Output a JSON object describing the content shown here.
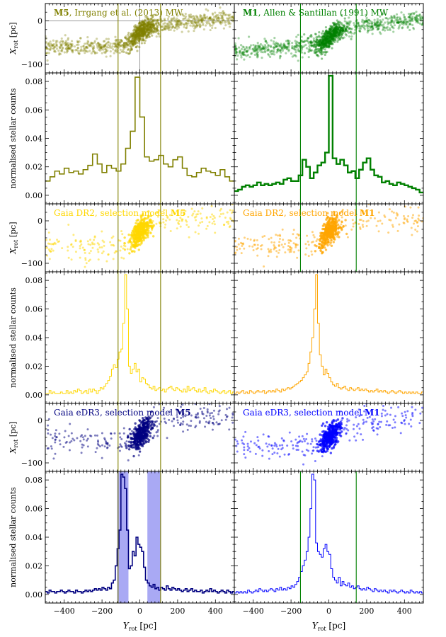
{
  "figure": {
    "xlabel": "Y_rot [pc]",
    "xlabel_main": "Y",
    "xlabel_sub": "rot",
    "xlabel_unit": "[pc]",
    "ylabel_scatter_main": "X",
    "ylabel_scatter_sub": "rot",
    "ylabel_scatter_unit": "[pc]",
    "ylabel_hist": "normalised stellar counts",
    "colors": {
      "olive": "#808000",
      "green": "#008000",
      "gold": "#ffd700",
      "orange": "#ffa500",
      "navy": "#000080",
      "blue": "#0000ff",
      "band": "#8c8cf0"
    }
  },
  "chart_data": [
    {
      "type": "scatter",
      "panel": "row1-left",
      "title_bold": "M5",
      "title_rest": ", Irrgang et al. (2013) MW",
      "color": "#808000",
      "xlim": [
        -500,
        500
      ],
      "ylim": [
        -120,
        40
      ],
      "yticks": [
        0,
        -100
      ],
      "xticks": [
        -400,
        -200,
        0,
        200,
        400
      ],
      "vlines": [
        -115,
        110
      ],
      "hline": 0,
      "vline_zero": 0,
      "trend": {
        "x": [
          -500,
          -200,
          -60,
          0,
          60,
          200,
          500
        ],
        "y": [
          -60,
          -62,
          -55,
          -25,
          -12,
          -5,
          8
        ]
      },
      "density": "dense"
    },
    {
      "type": "scatter",
      "panel": "row1-right",
      "title_bold": "M1",
      "title_rest": ", Allen & Santillan (1991) MW",
      "color": "#008000",
      "xlim": [
        -500,
        500
      ],
      "ylim": [
        -120,
        40
      ],
      "yticks": [
        0,
        -100
      ],
      "xticks": [
        -400,
        -200,
        0,
        200,
        400
      ],
      "vlines": [
        -150,
        145
      ],
      "trend": {
        "x": [
          -500,
          -200,
          -40,
          0,
          40,
          200,
          500
        ],
        "y": [
          -70,
          -60,
          -52,
          -40,
          -22,
          -10,
          5
        ]
      },
      "density": "dense"
    },
    {
      "type": "histogram",
      "panel": "row2-left",
      "color": "#808000",
      "linewidth": 1.6,
      "xlim": [
        -500,
        500
      ],
      "ylim": [
        -0.006,
        0.086
      ],
      "yticks": [
        0.0,
        0.02,
        0.04,
        0.06,
        0.08
      ],
      "xticks": [
        -400,
        -200,
        0,
        200,
        400
      ],
      "vlines": [
        -115,
        110
      ],
      "bin_edges": [
        -500,
        -475,
        -450,
        -425,
        -400,
        -375,
        -350,
        -325,
        -300,
        -275,
        -250,
        -225,
        -200,
        -175,
        -150,
        -125,
        -100,
        -75,
        -50,
        -25,
        0,
        25,
        50,
        75,
        100,
        125,
        150,
        175,
        200,
        225,
        250,
        275,
        300,
        325,
        350,
        375,
        400,
        425,
        450,
        475,
        500
      ],
      "values": [
        0.01,
        0.013,
        0.017,
        0.015,
        0.019,
        0.016,
        0.017,
        0.015,
        0.018,
        0.021,
        0.029,
        0.022,
        0.016,
        0.021,
        0.019,
        0.017,
        0.022,
        0.033,
        0.045,
        0.083,
        0.055,
        0.027,
        0.024,
        0.025,
        0.028,
        0.022,
        0.02,
        0.025,
        0.027,
        0.019,
        0.014,
        0.013,
        0.016,
        0.019,
        0.017,
        0.016,
        0.014,
        0.018,
        0.013,
        0.01
      ]
    },
    {
      "type": "histogram",
      "panel": "row2-right",
      "color": "#008000",
      "linewidth": 2.4,
      "xlim": [
        -500,
        500
      ],
      "ylim": [
        -0.006,
        0.086
      ],
      "yticks": [
        0.0,
        0.02,
        0.04,
        0.06,
        0.08
      ],
      "xticks": [
        -400,
        -200,
        0,
        200,
        400
      ],
      "vlines": [
        -150,
        145
      ],
      "bin_edges": [
        -500,
        -480,
        -460,
        -440,
        -420,
        -400,
        -380,
        -360,
        -340,
        -320,
        -300,
        -280,
        -260,
        -240,
        -220,
        -200,
        -180,
        -160,
        -140,
        -120,
        -100,
        -80,
        -60,
        -40,
        -20,
        0,
        20,
        40,
        60,
        80,
        100,
        120,
        140,
        160,
        180,
        200,
        220,
        240,
        260,
        280,
        300,
        320,
        340,
        360,
        380,
        400,
        420,
        440,
        460,
        480,
        500
      ],
      "values": [
        0.003,
        0.004,
        0.006,
        0.007,
        0.006,
        0.007,
        0.009,
        0.007,
        0.008,
        0.007,
        0.008,
        0.009,
        0.008,
        0.011,
        0.012,
        0.01,
        0.01,
        0.014,
        0.025,
        0.02,
        0.012,
        0.016,
        0.021,
        0.023,
        0.03,
        0.084,
        0.026,
        0.022,
        0.025,
        0.021,
        0.016,
        0.017,
        0.012,
        0.018,
        0.023,
        0.026,
        0.018,
        0.014,
        0.013,
        0.009,
        0.01,
        0.008,
        0.007,
        0.009,
        0.008,
        0.007,
        0.006,
        0.005,
        0.004,
        0.002
      ]
    },
    {
      "type": "scatter",
      "panel": "row3-left",
      "title_plain": "Gaia DR2, selection model ",
      "title_bold": "M5",
      "color": "#ffd700",
      "xlim": [
        -500,
        500
      ],
      "ylim": [
        -120,
        40
      ],
      "yticks": [
        0,
        -100
      ],
      "xticks": [
        -400,
        -200,
        0,
        200,
        400
      ],
      "vlines": [
        -115,
        110
      ],
      "trend": {
        "x": [
          -500,
          -200,
          -60,
          0,
          60,
          200,
          500
        ],
        "y": [
          -60,
          -65,
          -55,
          -25,
          -8,
          0,
          8
        ]
      },
      "density": "sparse-core"
    },
    {
      "type": "scatter",
      "panel": "row3-right",
      "title_plain": "Gaia DR2, selection model ",
      "title_bold": "M1",
      "color": "#ffa500",
      "xlim": [
        -500,
        500
      ],
      "ylim": [
        -120,
        40
      ],
      "yticks": [
        0,
        -100
      ],
      "xticks": [
        -400,
        -200,
        0,
        200,
        400
      ],
      "vlines": [
        -150,
        145
      ],
      "trend": {
        "x": [
          -500,
          -200,
          -60,
          0,
          60,
          200,
          500
        ],
        "y": [
          -55,
          -60,
          -55,
          -25,
          -8,
          -2,
          5
        ]
      },
      "density": "sparse-core"
    },
    {
      "type": "histogram",
      "panel": "row4-left",
      "color": "#ffd700",
      "linewidth": 1.0,
      "xlim": [
        -500,
        500
      ],
      "ylim": [
        -0.006,
        0.086
      ],
      "yticks": [
        0.0,
        0.02,
        0.04,
        0.06,
        0.08
      ],
      "xticks": [
        -400,
        -200,
        0,
        200,
        400
      ],
      "vlines": [
        -115,
        110
      ],
      "bin_edges": "uniform-10",
      "values": [
        0.001,
        0.001,
        0.003,
        0.001,
        0.002,
        0.001,
        0.001,
        0.001,
        0.002,
        0.001,
        0.001,
        0.003,
        0.001,
        0.002,
        0.001,
        0.003,
        0.002,
        0.004,
        0.003,
        0.001,
        0.002,
        0.003,
        0.001,
        0.004,
        0.002,
        0.004,
        0.003,
        0.001,
        0.003,
        0.005,
        0.004,
        0.006,
        0.008,
        0.01,
        0.013,
        0.018,
        0.021,
        0.019,
        0.025,
        0.03,
        0.032,
        0.05,
        0.084,
        0.06,
        0.02,
        0.015,
        0.018,
        0.022,
        0.016,
        0.018,
        0.009,
        0.012,
        0.011,
        0.008,
        0.007,
        0.005,
        0.004,
        0.006,
        0.003,
        0.004,
        0.005,
        0.003,
        0.004,
        0.002,
        0.004,
        0.005,
        0.006,
        0.004,
        0.003,
        0.005,
        0.004,
        0.003,
        0.002,
        0.004,
        0.002,
        0.006,
        0.003,
        0.004,
        0.005,
        0.003,
        0.002,
        0.004,
        0.002,
        0.003,
        0.005,
        0.002,
        0.001,
        0.003,
        0.002,
        0.004,
        0.003,
        0.002,
        0.001,
        0.002,
        0.003,
        0.001,
        0.002,
        0.003,
        0.001,
        0.002
      ]
    },
    {
      "type": "histogram",
      "panel": "row4-right",
      "color": "#ffa500",
      "linewidth": 1.0,
      "xlim": [
        -500,
        500
      ],
      "ylim": [
        -0.006,
        0.086
      ],
      "yticks": [
        0.0,
        0.02,
        0.04,
        0.06,
        0.08
      ],
      "xticks": [
        -400,
        -200,
        0,
        200,
        400
      ],
      "vlines": [],
      "bin_edges": "uniform-10",
      "values": [
        0.001,
        0.002,
        0.001,
        0.002,
        0.003,
        0.001,
        0.002,
        0.001,
        0.003,
        0.002,
        0.001,
        0.002,
        0.003,
        0.002,
        0.002,
        0.003,
        0.001,
        0.002,
        0.003,
        0.002,
        0.003,
        0.002,
        0.004,
        0.003,
        0.002,
        0.004,
        0.003,
        0.004,
        0.005,
        0.004,
        0.005,
        0.006,
        0.007,
        0.008,
        0.009,
        0.01,
        0.012,
        0.014,
        0.016,
        0.022,
        0.03,
        0.04,
        0.06,
        0.084,
        0.05,
        0.028,
        0.02,
        0.014,
        0.018,
        0.015,
        0.012,
        0.009,
        0.007,
        0.006,
        0.008,
        0.005,
        0.004,
        0.005,
        0.006,
        0.004,
        0.003,
        0.005,
        0.004,
        0.003,
        0.004,
        0.005,
        0.003,
        0.004,
        0.003,
        0.004,
        0.003,
        0.002,
        0.003,
        0.002,
        0.003,
        0.004,
        0.002,
        0.003,
        0.002,
        0.003,
        0.002,
        0.001,
        0.002,
        0.003,
        0.002,
        0.001,
        0.002,
        0.003,
        0.002,
        0.001,
        0.002,
        0.001,
        0.002,
        0.001,
        0.002,
        0.001,
        0.002,
        0.001,
        0.001,
        0.002
      ]
    },
    {
      "type": "scatter",
      "panel": "row5-left",
      "title_plain": "Gaia eDR3, selection model ",
      "title_bold": "M5",
      "color": "#000080",
      "xlim": [
        -500,
        500
      ],
      "ylim": [
        -120,
        40
      ],
      "yticks": [
        0,
        -100
      ],
      "xticks": [
        -400,
        -200,
        0,
        200,
        400
      ],
      "vlines": [
        -115,
        110
      ],
      "trend": {
        "x": [
          -500,
          -200,
          -60,
          0,
          60,
          200,
          500
        ],
        "y": [
          -40,
          -50,
          -55,
          -35,
          -10,
          0,
          8
        ]
      },
      "density": "sparse-core"
    },
    {
      "type": "scatter",
      "panel": "row5-right",
      "title_plain": "Gaia eDR3, selection model ",
      "title_bold": "M1",
      "color": "#0000ff",
      "xlim": [
        -500,
        500
      ],
      "ylim": [
        -120,
        40
      ],
      "yticks": [
        0,
        -100
      ],
      "xticks": [
        -400,
        -200,
        0,
        200,
        400
      ],
      "vlines": [],
      "trend": {
        "x": [
          -500,
          -200,
          -60,
          0,
          60,
          200,
          500
        ],
        "y": [
          -55,
          -65,
          -60,
          -40,
          -15,
          0,
          10
        ]
      },
      "density": "sparse-core"
    },
    {
      "type": "histogram",
      "panel": "row6-left",
      "color": "#000080",
      "linewidth": 1.6,
      "xlim": [
        -500,
        500
      ],
      "ylim": [
        -0.006,
        0.086
      ],
      "yticks": [
        0.0,
        0.02,
        0.04,
        0.06,
        0.08
      ],
      "xticks": [
        -400,
        -200,
        0,
        200,
        400
      ],
      "vlines": [
        -115,
        110
      ],
      "bands": [
        [
          -120,
          -60
        ],
        [
          40,
          110
        ]
      ],
      "bin_edges": "uniform-10",
      "values": [
        0.002,
        0.001,
        0.003,
        0.002,
        0.002,
        0.001,
        0.002,
        0.002,
        0.003,
        0.002,
        0.001,
        0.002,
        0.003,
        0.002,
        0.002,
        0.001,
        0.003,
        0.002,
        0.002,
        0.001,
        0.002,
        0.003,
        0.002,
        0.003,
        0.002,
        0.003,
        0.004,
        0.003,
        0.004,
        0.003,
        0.005,
        0.004,
        0.003,
        0.005,
        0.004,
        0.008,
        0.01,
        0.02,
        0.032,
        0.045,
        0.084,
        0.082,
        0.074,
        0.045,
        0.018,
        0.02,
        0.03,
        0.027,
        0.04,
        0.035,
        0.033,
        0.03,
        0.019,
        0.01,
        0.008,
        0.006,
        0.005,
        0.007,
        0.004,
        0.005,
        0.003,
        0.005,
        0.004,
        0.003,
        0.006,
        0.004,
        0.003,
        0.005,
        0.004,
        0.003,
        0.004,
        0.003,
        0.002,
        0.003,
        0.004,
        0.002,
        0.003,
        0.004,
        0.002,
        0.003,
        0.002,
        0.002,
        0.003,
        0.001,
        0.002,
        0.003,
        0.002,
        0.004,
        0.002,
        0.003,
        0.002,
        0.001,
        0.002,
        0.003,
        0.002,
        0.001,
        0.003,
        0.002,
        0.001,
        0.002
      ]
    },
    {
      "type": "histogram",
      "panel": "row6-right",
      "color": "#0000ff",
      "linewidth": 1.0,
      "xlim": [
        -500,
        500
      ],
      "ylim": [
        -0.006,
        0.086
      ],
      "yticks": [
        0.0,
        0.02,
        0.04,
        0.06,
        0.08
      ],
      "xticks": [
        -400,
        -200,
        0,
        200,
        400
      ],
      "vlines": [
        -150,
        145
      ],
      "bin_edges": "uniform-10",
      "values": [
        0.001,
        0.002,
        0.001,
        0.002,
        0.001,
        0.002,
        0.001,
        0.003,
        0.002,
        0.001,
        0.002,
        0.003,
        0.002,
        0.004,
        0.003,
        0.002,
        0.003,
        0.002,
        0.003,
        0.004,
        0.003,
        0.002,
        0.004,
        0.003,
        0.005,
        0.003,
        0.004,
        0.003,
        0.005,
        0.004,
        0.006,
        0.005,
        0.007,
        0.009,
        0.012,
        0.016,
        0.02,
        0.024,
        0.03,
        0.04,
        0.06,
        0.084,
        0.08,
        0.036,
        0.03,
        0.028,
        0.026,
        0.032,
        0.035,
        0.03,
        0.028,
        0.018,
        0.012,
        0.01,
        0.008,
        0.012,
        0.006,
        0.009,
        0.007,
        0.006,
        0.008,
        0.005,
        0.006,
        0.004,
        0.005,
        0.006,
        0.004,
        0.003,
        0.004,
        0.003,
        0.005,
        0.004,
        0.003,
        0.002,
        0.004,
        0.003,
        0.002,
        0.003,
        0.002,
        0.003,
        0.002,
        0.001,
        0.003,
        0.002,
        0.003,
        0.002,
        0.001,
        0.002,
        0.003,
        0.002,
        0.001,
        0.002,
        0.001,
        0.003,
        0.002,
        0.001,
        0.002,
        0.001,
        0.002,
        0.001
      ]
    }
  ]
}
